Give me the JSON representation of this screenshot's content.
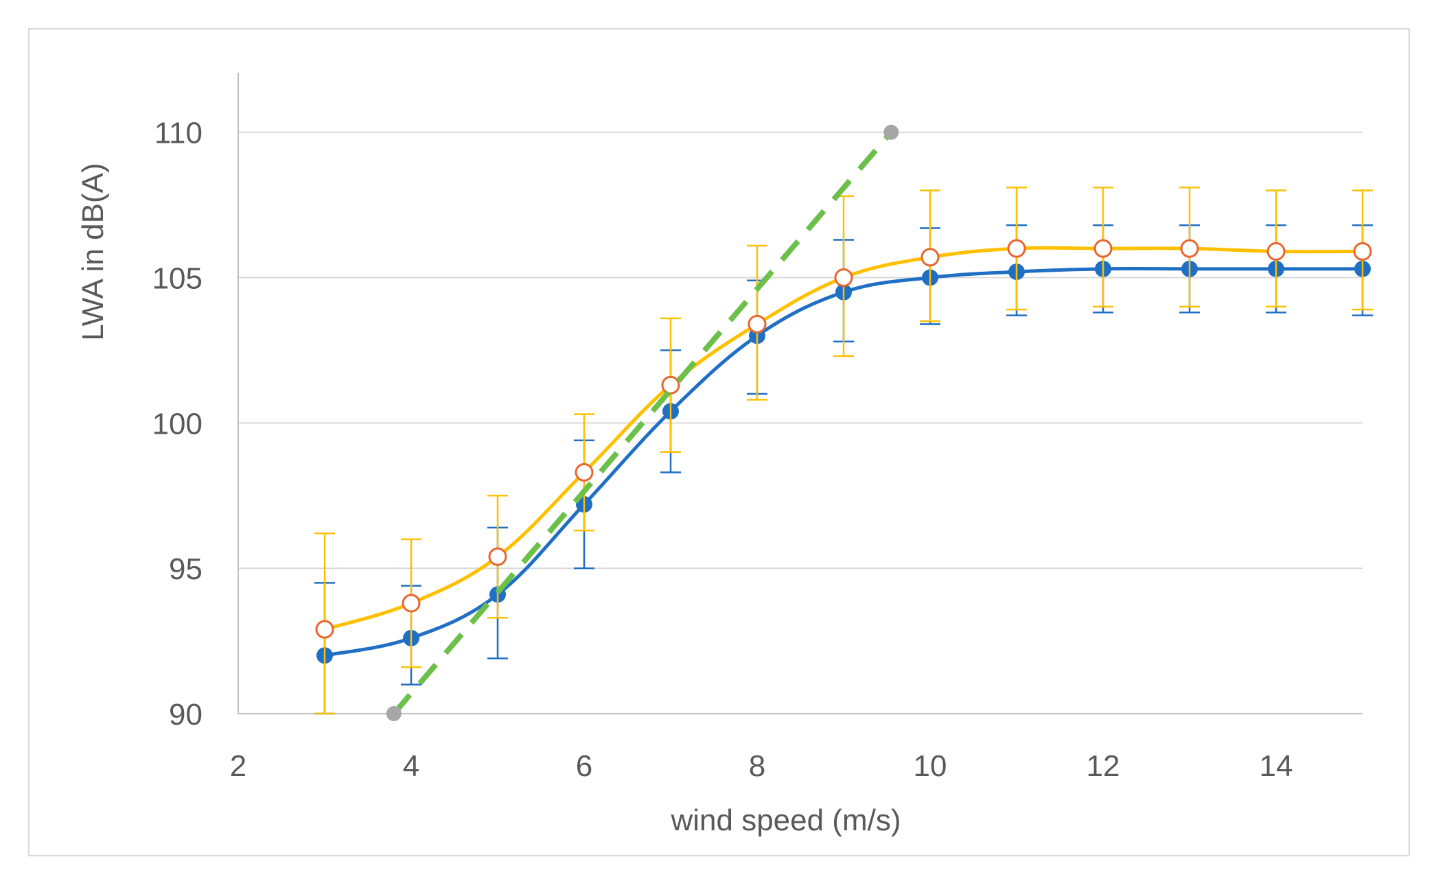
{
  "chart_data": {
    "type": "line",
    "title": "",
    "xlabel": "wind speed (m/s)",
    "ylabel": "LWA in dB(A)",
    "xlim": [
      2,
      15
    ],
    "ylim": [
      90,
      112
    ],
    "x_ticks": [
      2,
      4,
      6,
      8,
      10,
      12,
      14
    ],
    "y_ticks": [
      90,
      95,
      100,
      105,
      110
    ],
    "x_tick_labels": [
      "2",
      "4",
      "6",
      "8",
      "10",
      "12",
      "14"
    ],
    "y_tick_labels": [
      "90",
      "95",
      "100",
      "105",
      "110"
    ],
    "grid": "horizontal",
    "legend": "none",
    "series": [
      {
        "style": "solid-line-filled-markers",
        "color": "#1f6fc5",
        "x": [
          3,
          4,
          5,
          6,
          7,
          8,
          9,
          10,
          11,
          12,
          13,
          14,
          15
        ],
        "values": [
          92.0,
          92.6,
          94.1,
          97.2,
          100.4,
          103.0,
          104.5,
          105.0,
          105.2,
          105.3,
          105.3,
          105.3,
          105.3
        ],
        "err_low": [
          90.0,
          91.0,
          91.9,
          95.0,
          98.3,
          101.0,
          102.8,
          103.4,
          103.7,
          103.8,
          103.8,
          103.8,
          103.7
        ],
        "err_high": [
          94.5,
          94.4,
          96.4,
          99.4,
          102.5,
          104.9,
          106.3,
          106.7,
          106.8,
          106.8,
          106.8,
          106.8,
          106.8
        ]
      },
      {
        "style": "solid-line-hollow-markers",
        "color": "#ffc000",
        "marker_stroke": "#e8662e",
        "x": [
          3,
          4,
          5,
          6,
          7,
          8,
          9,
          10,
          11,
          12,
          13,
          14,
          15
        ],
        "values": [
          92.9,
          93.8,
          95.4,
          98.3,
          101.3,
          103.4,
          105.0,
          105.7,
          106.0,
          106.0,
          106.0,
          105.9,
          105.9
        ],
        "err_low": [
          90.0,
          91.6,
          93.3,
          96.3,
          99.0,
          100.8,
          102.3,
          103.5,
          103.9,
          104.0,
          104.0,
          104.0,
          103.9
        ],
        "err_high": [
          96.2,
          96.0,
          97.5,
          100.3,
          103.6,
          106.1,
          107.8,
          108.0,
          108.1,
          108.1,
          108.1,
          108.0,
          108.0
        ]
      },
      {
        "style": "dashed-line-end-markers",
        "color": "#6cc04a",
        "endpoint_color": "#a6a6a6",
        "x": [
          3.8,
          9.55
        ],
        "values": [
          90.0,
          110.0
        ]
      }
    ]
  },
  "colors": {
    "grid": "#d9d9d9",
    "axis": "#bfbfbf",
    "text": "#595959",
    "frame": "#d9d9d9"
  }
}
